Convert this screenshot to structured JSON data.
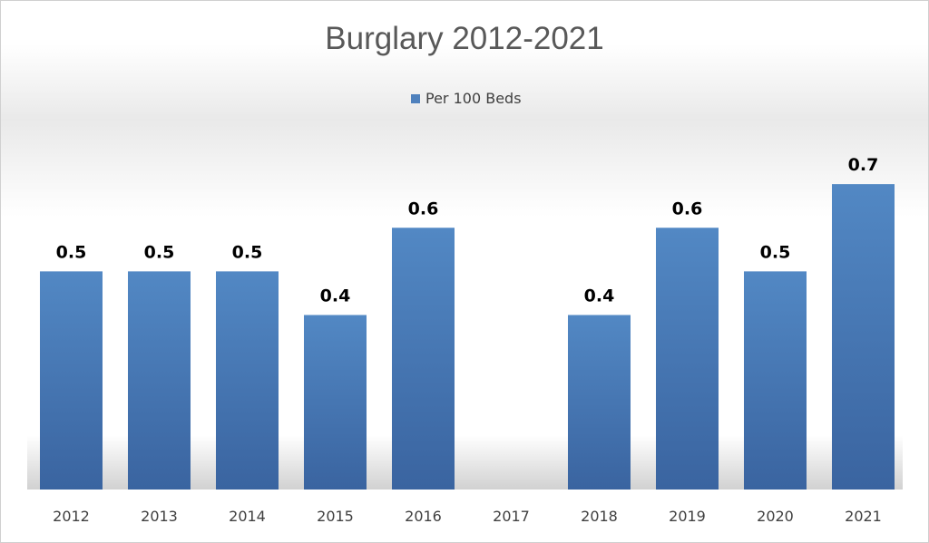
{
  "chart_data": {
    "type": "bar",
    "title": "Burglary 2012-2021",
    "categories": [
      "2012",
      "2013",
      "2014",
      "2015",
      "2016",
      "2017",
      "2018",
      "2019",
      "2020",
      "2021"
    ],
    "series": [
      {
        "name": "Per 100 Beds",
        "values": [
          0.5,
          0.5,
          0.5,
          0.4,
          0.6,
          null,
          0.4,
          0.6,
          0.5,
          0.7
        ]
      }
    ],
    "data_labels": [
      "0.5",
      "0.5",
      "0.5",
      "0.4",
      "0.6",
      "",
      "0.4",
      "0.6",
      "0.5",
      "0.7"
    ],
    "ylim": [
      0,
      0.8
    ],
    "grid": false,
    "legend_position": "top",
    "bar_color": "#4f81bd"
  }
}
